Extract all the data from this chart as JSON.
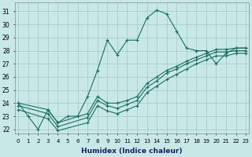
{
  "xlabel": "Humidex (Indice chaleur)",
  "bg_color": "#c8e8e8",
  "grid_color": "#a8cccc",
  "line_color": "#1a6e5e",
  "xlim": [
    -0.3,
    23.3
  ],
  "ylim": [
    21.7,
    31.7
  ],
  "yticks": [
    22,
    23,
    24,
    25,
    26,
    27,
    28,
    29,
    30,
    31
  ],
  "xticks": [
    0,
    1,
    2,
    3,
    4,
    5,
    6,
    7,
    8,
    9,
    10,
    11,
    12,
    13,
    14,
    15,
    16,
    17,
    18,
    19,
    20,
    21,
    22,
    23
  ],
  "series": [
    {
      "x": [
        0,
        1,
        2,
        3,
        4,
        5,
        6,
        7,
        8,
        9,
        10,
        11,
        12,
        13,
        14,
        15,
        16,
        17,
        18,
        19,
        20,
        21,
        22,
        23
      ],
      "y": [
        24.0,
        23.0,
        22.0,
        23.5,
        22.5,
        23.0,
        23.0,
        24.5,
        26.5,
        28.8,
        27.7,
        28.8,
        28.8,
        30.5,
        31.1,
        30.8,
        29.5,
        28.2,
        28.0,
        28.0,
        27.0,
        27.8,
        28.2,
        28.2
      ]
    },
    {
      "x": [
        0,
        3,
        4,
        7,
        8,
        9,
        10,
        11,
        12,
        13,
        14,
        15,
        16,
        17,
        18,
        19,
        20,
        21,
        22,
        23
      ],
      "y": [
        24.0,
        23.5,
        22.5,
        23.2,
        24.5,
        24.0,
        24.0,
        24.2,
        24.5,
        25.5,
        26.0,
        26.5,
        26.8,
        27.2,
        27.5,
        27.8,
        28.1,
        28.1,
        28.2,
        28.2
      ]
    },
    {
      "x": [
        0,
        3,
        4,
        7,
        8,
        9,
        10,
        11,
        12,
        13,
        14,
        15,
        16,
        17,
        18,
        19,
        20,
        21,
        22,
        23
      ],
      "y": [
        23.8,
        23.2,
        22.2,
        22.9,
        24.2,
        23.8,
        23.6,
        23.9,
        24.2,
        25.2,
        25.7,
        26.3,
        26.6,
        27.0,
        27.3,
        27.6,
        27.9,
        27.9,
        28.0,
        28.0
      ]
    },
    {
      "x": [
        0,
        3,
        4,
        7,
        8,
        9,
        10,
        11,
        12,
        13,
        14,
        15,
        16,
        17,
        18,
        19,
        20,
        21,
        22,
        23
      ],
      "y": [
        23.5,
        22.8,
        21.9,
        22.5,
        23.8,
        23.4,
        23.2,
        23.5,
        23.8,
        24.8,
        25.3,
        25.8,
        26.2,
        26.6,
        27.0,
        27.3,
        27.6,
        27.6,
        27.8,
        27.8
      ]
    }
  ]
}
